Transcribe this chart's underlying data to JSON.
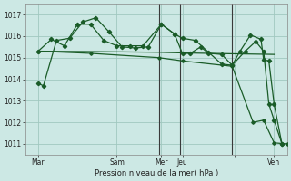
{
  "bg_color": "#cce8e4",
  "grid_color": "#a0c8c0",
  "line_color": "#1a5c28",
  "ylabel_color": "#222222",
  "ylim": [
    1010.5,
    1017.5
  ],
  "yticks": [
    1011,
    1012,
    1013,
    1014,
    1015,
    1016,
    1017
  ],
  "xlabel": "Pression niveau de la mer( hPa )",
  "xlim": [
    0,
    100
  ],
  "xtick_positions": [
    5,
    35,
    52,
    60,
    80,
    95
  ],
  "xtick_labels": [
    "Mar",
    "Sam",
    "Mer",
    "Jeu",
    "",
    "Ven"
  ],
  "vlines": [
    51,
    59,
    79
  ],
  "series_flat": {
    "x": [
      5,
      25,
      51,
      60,
      79,
      95
    ],
    "y": [
      1015.3,
      1015.28,
      1015.25,
      1015.22,
      1015.18,
      1015.15
    ]
  },
  "series_decline": {
    "x": [
      5,
      25,
      51,
      60,
      79,
      87,
      91,
      95,
      100
    ],
    "y": [
      1015.3,
      1015.2,
      1015.0,
      1014.85,
      1014.6,
      1012.0,
      1012.1,
      1011.05,
      1011.0
    ]
  },
  "series_zigzag1": {
    "x": [
      5,
      7,
      12,
      17,
      22,
      27,
      32,
      37,
      42,
      47,
      52,
      57,
      60,
      65,
      70,
      75,
      79,
      82,
      86,
      90,
      91,
      93,
      95,
      98
    ],
    "y": [
      1013.8,
      1013.7,
      1015.8,
      1015.9,
      1016.65,
      1016.85,
      1016.2,
      1015.5,
      1015.45,
      1015.5,
      1016.55,
      1016.1,
      1015.9,
      1015.8,
      1015.25,
      1014.7,
      1014.65,
      1015.3,
      1016.05,
      1015.85,
      1014.9,
      1014.85,
      1012.85,
      1011.0
    ]
  },
  "series_zigzag2": {
    "x": [
      5,
      10,
      15,
      20,
      25,
      30,
      35,
      40,
      45,
      52,
      57,
      60,
      63,
      67,
      70,
      75,
      79,
      84,
      88,
      91,
      93,
      95,
      98
    ],
    "y": [
      1015.3,
      1015.85,
      1015.55,
      1016.55,
      1016.55,
      1015.8,
      1015.55,
      1015.55,
      1015.55,
      1016.55,
      1016.1,
      1015.2,
      1015.2,
      1015.5,
      1015.2,
      1015.15,
      1014.65,
      1015.3,
      1015.75,
      1015.3,
      1012.85,
      1012.1,
      1011.0
    ]
  }
}
